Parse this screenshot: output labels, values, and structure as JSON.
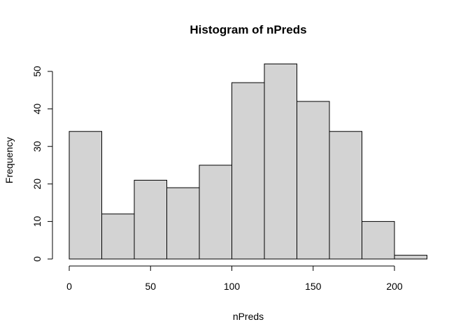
{
  "chart_data": {
    "type": "bar",
    "title": "Histogram of nPreds",
    "xlabel": "nPreds",
    "ylabel": "Frequency",
    "bins": [
      {
        "start": 0,
        "end": 20,
        "count": 34
      },
      {
        "start": 20,
        "end": 40,
        "count": 12
      },
      {
        "start": 40,
        "end": 60,
        "count": 21
      },
      {
        "start": 60,
        "end": 80,
        "count": 19
      },
      {
        "start": 80,
        "end": 100,
        "count": 25
      },
      {
        "start": 100,
        "end": 120,
        "count": 47
      },
      {
        "start": 120,
        "end": 140,
        "count": 52
      },
      {
        "start": 140,
        "end": 160,
        "count": 42
      },
      {
        "start": 160,
        "end": 180,
        "count": 34
      },
      {
        "start": 180,
        "end": 200,
        "count": 10
      },
      {
        "start": 200,
        "end": 220,
        "count": 1
      }
    ],
    "xlim": [
      0,
      220
    ],
    "ylim": [
      0,
      52
    ],
    "xticks": [
      0,
      50,
      100,
      150,
      200
    ],
    "yticks": [
      0,
      10,
      20,
      30,
      40,
      50
    ],
    "bar_color": "#d3d3d3",
    "grid": false,
    "legend": "none"
  }
}
